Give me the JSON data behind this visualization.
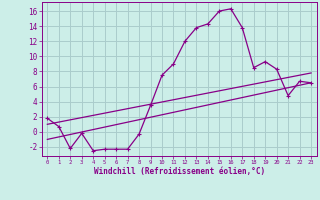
{
  "xlabel": "Windchill (Refroidissement éolien,°C)",
  "background_color": "#cceee8",
  "grid_color": "#aacccc",
  "line_color": "#880088",
  "xlim": [
    -0.5,
    23.5
  ],
  "ylim": [
    -3.2,
    17.2
  ],
  "xticks": [
    0,
    1,
    2,
    3,
    4,
    5,
    6,
    7,
    8,
    9,
    10,
    11,
    12,
    13,
    14,
    15,
    16,
    17,
    18,
    19,
    20,
    21,
    22,
    23
  ],
  "yticks": [
    -2,
    0,
    2,
    4,
    6,
    8,
    10,
    12,
    14,
    16
  ],
  "line1_x": [
    0,
    1,
    2,
    3,
    4,
    5,
    6,
    7,
    8,
    9,
    10,
    11,
    12,
    13,
    14,
    15,
    16,
    17,
    18,
    19,
    20,
    21,
    22,
    23
  ],
  "line1_y": [
    1.8,
    0.7,
    -2.2,
    -0.2,
    -2.5,
    -2.3,
    -2.3,
    -2.3,
    -0.3,
    3.5,
    7.5,
    9.0,
    12.0,
    13.8,
    14.3,
    16.0,
    16.3,
    13.8,
    8.5,
    9.3,
    8.3,
    4.8,
    6.7,
    6.5
  ],
  "line2_x": [
    0,
    23
  ],
  "line2_y": [
    1.0,
    7.8
  ],
  "line3_x": [
    0,
    23
  ],
  "line3_y": [
    -1.0,
    6.5
  ],
  "marker": "+"
}
